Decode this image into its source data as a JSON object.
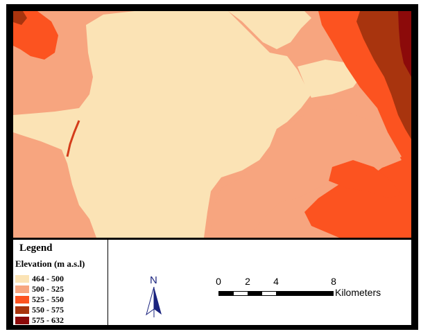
{
  "legend": {
    "title": "Legend",
    "subtitle": "Elevation (m a.s.l)",
    "classes": [
      {
        "label": "464 - 500",
        "color": "#fbe3b5"
      },
      {
        "label": "500 - 525",
        "color": "#f7a57f"
      },
      {
        "label": "525 - 550",
        "color": "#fc5320"
      },
      {
        "label": "550 - 575",
        "color": "#a8340e"
      },
      {
        "label": "575 - 632",
        "color": "#8c0a0a"
      }
    ]
  },
  "north_arrow": {
    "label": "N",
    "color": "#1a237e"
  },
  "scale_bar": {
    "ticks": [
      "0",
      "2",
      "4",
      "8"
    ],
    "unit": "Kilometers"
  }
}
